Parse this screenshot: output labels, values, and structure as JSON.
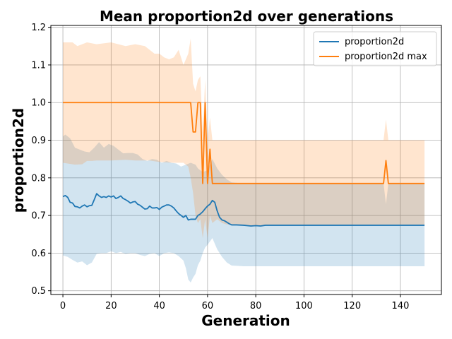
{
  "chart_data": {
    "type": "line",
    "title": "Mean proportion2d over generations",
    "xlabel": "Generation",
    "ylabel": "proportion2d",
    "xlim": [
      -5,
      157
    ],
    "ylim": [
      0.49,
      1.205
    ],
    "xticks": [
      0,
      20,
      40,
      60,
      80,
      100,
      120,
      140
    ],
    "yticks": [
      0.5,
      0.6,
      0.7,
      0.8,
      0.9,
      1.0,
      1.1,
      1.2
    ],
    "grid": true,
    "legend_position": "top-right",
    "series": [
      {
        "name": "proportion2d",
        "color": "#1f77b4",
        "band_color": "#1f77b4",
        "band_opacity": 0.2,
        "points": [
          [
            0,
            0.75
          ],
          [
            1,
            0.753
          ],
          [
            2,
            0.748
          ],
          [
            3,
            0.735
          ],
          [
            4,
            0.733
          ],
          [
            5,
            0.724
          ],
          [
            6,
            0.723
          ],
          [
            7,
            0.72
          ],
          [
            8,
            0.725
          ],
          [
            9,
            0.728
          ],
          [
            10,
            0.723
          ],
          [
            11,
            0.726
          ],
          [
            12,
            0.727
          ],
          [
            13,
            0.742
          ],
          [
            14,
            0.758
          ],
          [
            15,
            0.752
          ],
          [
            16,
            0.748
          ],
          [
            17,
            0.75
          ],
          [
            18,
            0.748
          ],
          [
            19,
            0.752
          ],
          [
            20,
            0.749
          ],
          [
            21,
            0.752
          ],
          [
            22,
            0.745
          ],
          [
            23,
            0.748
          ],
          [
            24,
            0.752
          ],
          [
            25,
            0.745
          ],
          [
            26,
            0.742
          ],
          [
            27,
            0.738
          ],
          [
            28,
            0.733
          ],
          [
            29,
            0.736
          ],
          [
            30,
            0.737
          ],
          [
            31,
            0.73
          ],
          [
            32,
            0.727
          ],
          [
            33,
            0.722
          ],
          [
            34,
            0.717
          ],
          [
            35,
            0.718
          ],
          [
            36,
            0.725
          ],
          [
            37,
            0.72
          ],
          [
            38,
            0.72
          ],
          [
            39,
            0.721
          ],
          [
            40,
            0.716
          ],
          [
            41,
            0.722
          ],
          [
            42,
            0.725
          ],
          [
            43,
            0.728
          ],
          [
            44,
            0.728
          ],
          [
            45,
            0.725
          ],
          [
            46,
            0.72
          ],
          [
            47,
            0.712
          ],
          [
            48,
            0.705
          ],
          [
            49,
            0.7
          ],
          [
            50,
            0.695
          ],
          [
            51,
            0.7
          ],
          [
            52,
            0.688
          ],
          [
            53,
            0.69
          ],
          [
            54,
            0.69
          ],
          [
            55,
            0.69
          ],
          [
            56,
            0.7
          ],
          [
            57,
            0.704
          ],
          [
            58,
            0.71
          ],
          [
            59,
            0.718
          ],
          [
            60,
            0.725
          ],
          [
            61,
            0.73
          ],
          [
            62,
            0.74
          ],
          [
            63,
            0.735
          ],
          [
            64,
            0.712
          ],
          [
            65,
            0.695
          ],
          [
            66,
            0.688
          ],
          [
            67,
            0.686
          ],
          [
            68,
            0.682
          ],
          [
            69,
            0.678
          ],
          [
            70,
            0.675
          ],
          [
            72,
            0.675
          ],
          [
            75,
            0.674
          ],
          [
            78,
            0.672
          ],
          [
            80,
            0.673
          ],
          [
            82,
            0.672
          ],
          [
            84,
            0.674
          ],
          [
            88,
            0.674
          ],
          [
            95,
            0.674
          ],
          [
            100,
            0.674
          ],
          [
            110,
            0.674
          ],
          [
            120,
            0.674
          ],
          [
            130,
            0.674
          ],
          [
            140,
            0.674
          ],
          [
            150,
            0.674
          ]
        ],
        "lower": [
          [
            0,
            0.594
          ],
          [
            2,
            0.59
          ],
          [
            4,
            0.582
          ],
          [
            6,
            0.575
          ],
          [
            8,
            0.578
          ],
          [
            10,
            0.568
          ],
          [
            12,
            0.575
          ],
          [
            14,
            0.598
          ],
          [
            16,
            0.6
          ],
          [
            18,
            0.6
          ],
          [
            20,
            0.605
          ],
          [
            22,
            0.6
          ],
          [
            24,
            0.603
          ],
          [
            26,
            0.598
          ],
          [
            28,
            0.6
          ],
          [
            30,
            0.6
          ],
          [
            32,
            0.595
          ],
          [
            34,
            0.592
          ],
          [
            36,
            0.598
          ],
          [
            38,
            0.6
          ],
          [
            40,
            0.592
          ],
          [
            42,
            0.6
          ],
          [
            44,
            0.602
          ],
          [
            46,
            0.6
          ],
          [
            48,
            0.592
          ],
          [
            50,
            0.58
          ],
          [
            51,
            0.56
          ],
          [
            52,
            0.53
          ],
          [
            53,
            0.522
          ],
          [
            54,
            0.535
          ],
          [
            55,
            0.545
          ],
          [
            56,
            0.568
          ],
          [
            57,
            0.58
          ],
          [
            58,
            0.6
          ],
          [
            59,
            0.615
          ],
          [
            60,
            0.622
          ],
          [
            62,
            0.64
          ],
          [
            64,
            0.61
          ],
          [
            66,
            0.59
          ],
          [
            68,
            0.575
          ],
          [
            70,
            0.567
          ],
          [
            75,
            0.565
          ],
          [
            80,
            0.565
          ],
          [
            90,
            0.565
          ],
          [
            100,
            0.565
          ],
          [
            110,
            0.565
          ],
          [
            120,
            0.565
          ],
          [
            130,
            0.565
          ],
          [
            140,
            0.565
          ],
          [
            150,
            0.565
          ]
        ],
        "upper": [
          [
            0,
            0.91
          ],
          [
            1,
            0.915
          ],
          [
            3,
            0.905
          ],
          [
            5,
            0.88
          ],
          [
            7,
            0.875
          ],
          [
            9,
            0.87
          ],
          [
            11,
            0.868
          ],
          [
            13,
            0.88
          ],
          [
            15,
            0.895
          ],
          [
            17,
            0.88
          ],
          [
            19,
            0.89
          ],
          [
            21,
            0.885
          ],
          [
            23,
            0.875
          ],
          [
            25,
            0.865
          ],
          [
            27,
            0.866
          ],
          [
            29,
            0.866
          ],
          [
            31,
            0.862
          ],
          [
            33,
            0.85
          ],
          [
            35,
            0.845
          ],
          [
            37,
            0.85
          ],
          [
            39,
            0.848
          ],
          [
            41,
            0.84
          ],
          [
            43,
            0.845
          ],
          [
            45,
            0.84
          ],
          [
            47,
            0.838
          ],
          [
            49,
            0.83
          ],
          [
            51,
            0.835
          ],
          [
            53,
            0.84
          ],
          [
            55,
            0.835
          ],
          [
            56,
            0.825
          ],
          [
            57,
            0.82
          ],
          [
            58,
            0.815
          ],
          [
            59,
            0.818
          ],
          [
            60,
            0.82
          ],
          [
            61,
            0.835
          ],
          [
            62,
            0.85
          ],
          [
            64,
            0.825
          ],
          [
            66,
            0.808
          ],
          [
            68,
            0.796
          ],
          [
            70,
            0.788
          ],
          [
            75,
            0.785
          ],
          [
            80,
            0.785
          ],
          [
            90,
            0.785
          ],
          [
            100,
            0.785
          ],
          [
            110,
            0.785
          ],
          [
            120,
            0.785
          ],
          [
            130,
            0.785
          ],
          [
            133,
            0.785
          ],
          [
            134,
            0.73
          ],
          [
            135,
            0.785
          ],
          [
            140,
            0.785
          ],
          [
            150,
            0.785
          ]
        ]
      },
      {
        "name": "proportion2d max",
        "color": "#ff7f0e",
        "band_color": "#ff7f0e",
        "band_opacity": 0.2,
        "points": [
          [
            0,
            1.0
          ],
          [
            53,
            1.0
          ],
          [
            54,
            0.922
          ],
          [
            55,
            0.922
          ],
          [
            56,
            1.0
          ],
          [
            57,
            1.0
          ],
          [
            58,
            0.785
          ],
          [
            59,
            1.0
          ],
          [
            60,
            0.785
          ],
          [
            61,
            0.876
          ],
          [
            62,
            0.785
          ],
          [
            70,
            0.785
          ],
          [
            80,
            0.785
          ],
          [
            100,
            0.785
          ],
          [
            120,
            0.785
          ],
          [
            133,
            0.785
          ],
          [
            134,
            0.846
          ],
          [
            135,
            0.785
          ],
          [
            150,
            0.785
          ]
        ],
        "lower": [
          [
            0,
            0.84
          ],
          [
            5,
            0.835
          ],
          [
            8,
            0.836
          ],
          [
            10,
            0.845
          ],
          [
            12,
            0.845
          ],
          [
            14,
            0.846
          ],
          [
            20,
            0.846
          ],
          [
            26,
            0.848
          ],
          [
            30,
            0.846
          ],
          [
            36,
            0.846
          ],
          [
            40,
            0.842
          ],
          [
            46,
            0.84
          ],
          [
            50,
            0.84
          ],
          [
            52,
            0.83
          ],
          [
            53,
            0.8
          ],
          [
            54,
            0.76
          ],
          [
            55,
            0.7
          ],
          [
            56,
            0.68
          ],
          [
            57,
            0.69
          ],
          [
            58,
            0.64
          ],
          [
            59,
            0.69
          ],
          [
            60,
            0.64
          ],
          [
            61,
            0.7
          ],
          [
            62,
            0.68
          ],
          [
            64,
            0.69
          ],
          [
            66,
            0.68
          ],
          [
            68,
            0.676
          ],
          [
            70,
            0.675
          ],
          [
            80,
            0.673
          ],
          [
            100,
            0.674
          ],
          [
            120,
            0.674
          ],
          [
            140,
            0.674
          ],
          [
            150,
            0.674
          ]
        ],
        "upper": [
          [
            0,
            1.16
          ],
          [
            4,
            1.16
          ],
          [
            6,
            1.15
          ],
          [
            8,
            1.155
          ],
          [
            10,
            1.16
          ],
          [
            14,
            1.155
          ],
          [
            20,
            1.16
          ],
          [
            26,
            1.15
          ],
          [
            30,
            1.155
          ],
          [
            34,
            1.15
          ],
          [
            38,
            1.13
          ],
          [
            40,
            1.13
          ],
          [
            42,
            1.12
          ],
          [
            44,
            1.115
          ],
          [
            46,
            1.12
          ],
          [
            48,
            1.14
          ],
          [
            50,
            1.1
          ],
          [
            52,
            1.13
          ],
          [
            53,
            1.17
          ],
          [
            54,
            1.05
          ],
          [
            55,
            1.03
          ],
          [
            56,
            1.06
          ],
          [
            57,
            1.07
          ],
          [
            58,
            0.92
          ],
          [
            59,
            1.06
          ],
          [
            60,
            0.9
          ],
          [
            61,
            0.96
          ],
          [
            62,
            0.9
          ],
          [
            70,
            0.9
          ],
          [
            80,
            0.9
          ],
          [
            100,
            0.9
          ],
          [
            120,
            0.9
          ],
          [
            133,
            0.9
          ],
          [
            134,
            0.955
          ],
          [
            135,
            0.9
          ],
          [
            150,
            0.9
          ]
        ]
      }
    ]
  }
}
